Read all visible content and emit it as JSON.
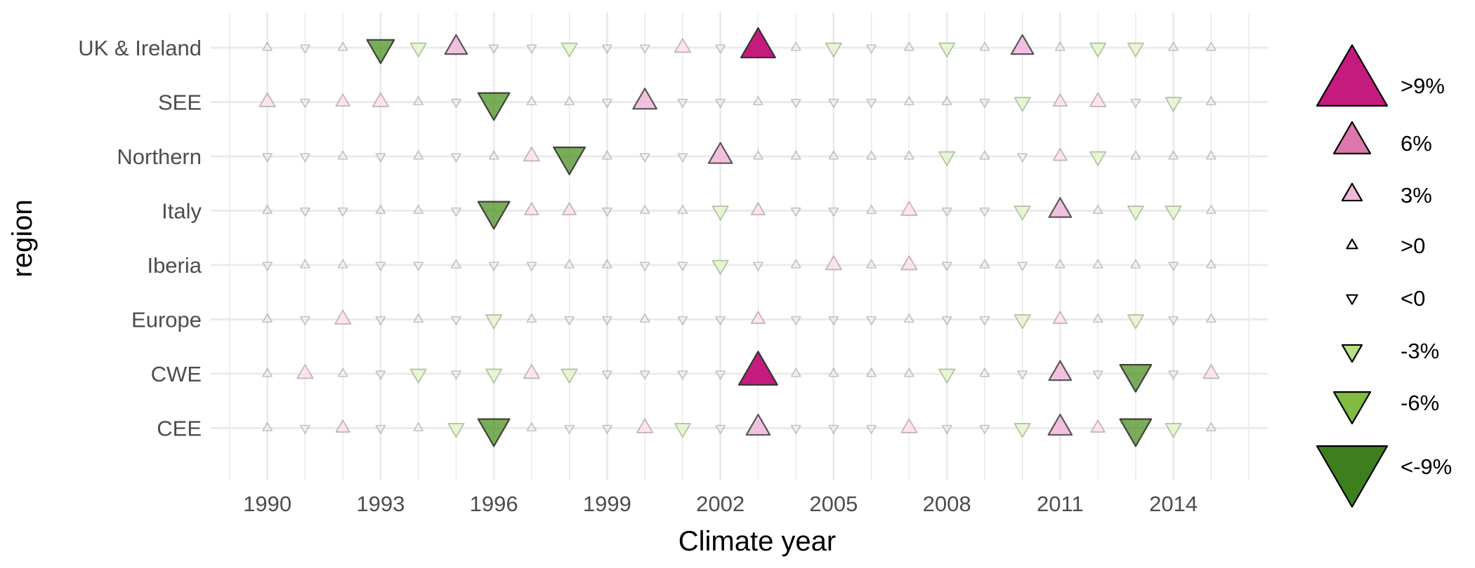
{
  "chart_data": {
    "type": "scatter",
    "xlabel": "Climate year",
    "ylabel": "region",
    "x_ticks": [
      "1990",
      "1993",
      "1996",
      "1999",
      "2002",
      "2005",
      "2008",
      "2011",
      "2014"
    ],
    "x_range": [
      1988.5,
      2016.5
    ],
    "grid": true,
    "legend_position": "right",
    "years": [
      1990,
      1991,
      1992,
      1993,
      1994,
      1995,
      1996,
      1997,
      1998,
      1999,
      2000,
      2001,
      2002,
      2003,
      2004,
      2005,
      2006,
      2007,
      2008,
      2009,
      2010,
      2011,
      2012,
      2013,
      2014,
      2015
    ],
    "value_unit": "%",
    "regions": [
      {
        "name": "UK & Ireland",
        "values": [
          0.5,
          -0.5,
          0.5,
          -6,
          -2,
          4,
          -0.5,
          -0.5,
          -2,
          -0.5,
          -0.5,
          2,
          -0.5,
          9.5,
          0.5,
          -2,
          -0.5,
          0.5,
          -2,
          0.5,
          4,
          0.5,
          -2,
          -2,
          0.5,
          0.5
        ]
      },
      {
        "name": "SEE",
        "values": [
          2,
          -0.5,
          1.5,
          2,
          0.5,
          -0.5,
          -8,
          0.5,
          0.5,
          -0.5,
          4.5,
          -0.5,
          -0.5,
          0.5,
          -0.5,
          -0.5,
          -0.5,
          0.5,
          0.5,
          -0.5,
          -2,
          1.5,
          2,
          -0.5,
          -2,
          0.5
        ]
      },
      {
        "name": "Northern",
        "values": [
          -0.5,
          -0.5,
          0.5,
          -0.5,
          0.5,
          -0.5,
          0.5,
          2,
          -8,
          0.5,
          -0.5,
          -0.5,
          4.5,
          0.5,
          0.5,
          0.5,
          0.5,
          0.5,
          -2,
          0.5,
          -0.5,
          1.5,
          -2,
          0.5,
          0.5,
          0.5
        ]
      },
      {
        "name": "Italy",
        "values": [
          0.5,
          -0.5,
          -0.5,
          0.5,
          0.5,
          -0.5,
          -8,
          1.5,
          1.5,
          -0.5,
          0.5,
          0.5,
          -2,
          1.5,
          -0.5,
          -0.5,
          0.5,
          2,
          -0.5,
          -0.5,
          -2,
          4,
          0.5,
          -2,
          -2,
          0.5
        ]
      },
      {
        "name": "Iberia",
        "values": [
          -0.5,
          0.5,
          0.5,
          -0.5,
          -0.5,
          0.5,
          -0.5,
          -0.5,
          0.5,
          0.5,
          -0.5,
          -0.5,
          -2,
          -0.5,
          0.5,
          2,
          0.5,
          2,
          -0.5,
          0.5,
          -0.5,
          0.5,
          0.5,
          0.5,
          -0.5,
          0.5
        ]
      },
      {
        "name": "Europe",
        "values": [
          0.5,
          -0.5,
          2,
          -0.5,
          0.5,
          -0.5,
          -2,
          0.5,
          -0.5,
          -0.5,
          0.5,
          -0.5,
          -0.5,
          1.5,
          -0.5,
          -0.5,
          -0.5,
          0.5,
          -0.5,
          -0.5,
          -2,
          1.5,
          0.5,
          -2,
          -0.5,
          0.5
        ]
      },
      {
        "name": "CWE",
        "values": [
          0.5,
          2,
          0.5,
          -0.5,
          -2,
          -0.5,
          -2,
          2,
          -2,
          -0.5,
          -0.5,
          -0.5,
          -0.5,
          12,
          0.5,
          0.5,
          0.5,
          0.5,
          -2,
          0.5,
          -0.5,
          4,
          -0.5,
          -8,
          -0.5,
          2
        ]
      },
      {
        "name": "CEE",
        "values": [
          0.5,
          -0.5,
          1.5,
          -0.5,
          0.5,
          -2,
          -8,
          0.5,
          -0.5,
          -0.5,
          2,
          -2,
          -0.5,
          4.5,
          -0.5,
          -0.5,
          -0.5,
          2,
          -0.5,
          -0.5,
          -2,
          4.5,
          1.5,
          -8,
          -2,
          0.5
        ]
      }
    ],
    "legend": [
      {
        "label": ">9%",
        "value": 12
      },
      {
        "label": "6%",
        "value": 7
      },
      {
        "label": "3%",
        "value": 3.2
      },
      {
        "label": ">0",
        "value": 0.5
      },
      {
        "label": "<0",
        "value": -0.5
      },
      {
        "label": "-3%",
        "value": -3.2
      },
      {
        "label": "-6%",
        "value": -7
      },
      {
        "label": "<-9%",
        "value": -12
      }
    ],
    "colors": {
      "pos_strong": "#c51b7d",
      "pos_mid": "#de77ae",
      "pos_light": "#f1b6da",
      "pos_faint": "#fde0ef",
      "neg_faint": "#e6f5d0",
      "neg_light": "#b8e186",
      "neg_mid": "#7fbc41",
      "neg_strong": "#4d9221",
      "legend_neg_strong": "#3e7f1d",
      "grid": "#ebebeb",
      "outline": "#333333"
    }
  }
}
